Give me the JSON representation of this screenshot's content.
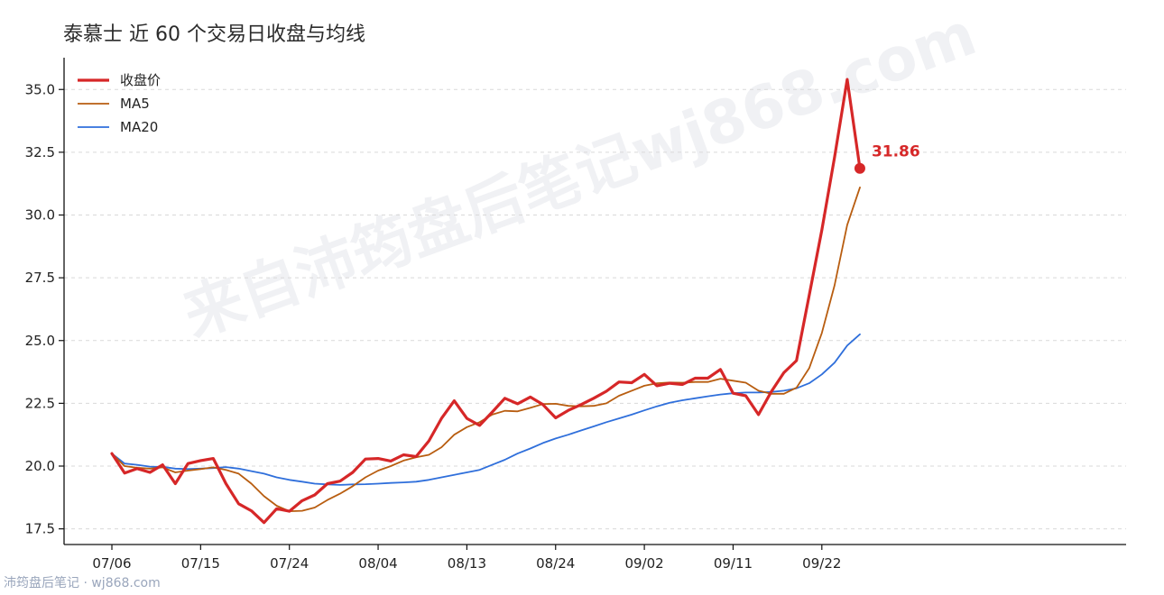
{
  "title": "泰慕士 近 60 个交易日收盘与均线",
  "watermark": "来自沛筠盘后笔记wj868.com",
  "footer": "沛筠盘后笔记 · wj868.com",
  "colors": {
    "close": "#d62728",
    "ma5": "#b85d10",
    "ma20": "#2f6fdb"
  },
  "chart_data": {
    "type": "line",
    "title": "泰慕士 近 60 个交易日收盘与均线",
    "xlabel": "",
    "ylabel": "",
    "ylim": [
      17.3,
      36.3
    ],
    "yticks": [
      17.5,
      20.0,
      22.5,
      25.0,
      27.5,
      30.0,
      32.5,
      35.0
    ],
    "ytick_labels": [
      "17.5",
      "20.0",
      "22.5",
      "25.0",
      "27.5",
      "30.0",
      "32.5",
      "35.0"
    ],
    "xtick_labels": [
      {
        "label": "07/06",
        "index": 0
      },
      {
        "label": "07/15",
        "index": 7
      },
      {
        "label": "07/24",
        "index": 14
      },
      {
        "label": "08/04",
        "index": 21
      },
      {
        "label": "08/13",
        "index": 28
      },
      {
        "label": "08/24",
        "index": 35
      },
      {
        "label": "09/02",
        "index": 42
      },
      {
        "label": "09/11",
        "index": 49
      },
      {
        "label": "09/22",
        "index": 56
      }
    ],
    "grid": "y-dashed",
    "legend_position": "top-left",
    "series": [
      {
        "name": "收盘价",
        "key": "close",
        "values": [
          20.5,
          19.72,
          19.9,
          19.75,
          20.05,
          19.3,
          20.1,
          20.22,
          20.3,
          19.3,
          18.5,
          18.22,
          17.75,
          18.3,
          18.2,
          18.62,
          18.85,
          19.3,
          19.4,
          19.75,
          20.28,
          20.3,
          20.2,
          20.45,
          20.38,
          21.0,
          21.9,
          22.6,
          21.9,
          21.62,
          22.15,
          22.7,
          22.48,
          22.75,
          22.45,
          21.92,
          22.22,
          22.45,
          22.7,
          22.98,
          23.35,
          23.32,
          23.65,
          23.2,
          23.3,
          23.25,
          23.5,
          23.5,
          23.85,
          22.9,
          22.8,
          22.05,
          22.95,
          23.72,
          24.2,
          26.8,
          29.4,
          32.3,
          35.4,
          31.86
        ]
      },
      {
        "name": "MA5",
        "key": "ma5",
        "values": [
          20.5,
          20.0,
          19.93,
          19.9,
          19.95,
          19.75,
          19.82,
          19.88,
          19.95,
          19.85,
          19.7,
          19.3,
          18.8,
          18.42,
          18.2,
          18.22,
          18.35,
          18.65,
          18.9,
          19.2,
          19.55,
          19.82,
          20.0,
          20.22,
          20.35,
          20.45,
          20.75,
          21.25,
          21.55,
          21.75,
          22.05,
          22.2,
          22.18,
          22.32,
          22.47,
          22.48,
          22.4,
          22.38,
          22.4,
          22.5,
          22.8,
          23.0,
          23.2,
          23.3,
          23.33,
          23.32,
          23.35,
          23.35,
          23.48,
          23.4,
          23.32,
          23.0,
          22.88,
          22.88,
          23.12,
          23.9,
          25.3,
          27.2,
          29.6,
          31.1
        ]
      },
      {
        "name": "MA20",
        "key": "ma20",
        "values": [
          20.5,
          20.1,
          20.05,
          19.98,
          19.97,
          19.9,
          19.88,
          19.9,
          19.92,
          19.96,
          19.9,
          19.8,
          19.7,
          19.55,
          19.45,
          19.38,
          19.3,
          19.27,
          19.25,
          19.27,
          19.28,
          19.3,
          19.33,
          19.35,
          19.38,
          19.45,
          19.55,
          19.65,
          19.75,
          19.85,
          20.05,
          20.25,
          20.5,
          20.7,
          20.92,
          21.1,
          21.25,
          21.42,
          21.58,
          21.75,
          21.9,
          22.05,
          22.22,
          22.38,
          22.52,
          22.62,
          22.7,
          22.78,
          22.85,
          22.9,
          22.93,
          22.93,
          22.95,
          23.0,
          23.1,
          23.3,
          23.65,
          24.12,
          24.8,
          25.25
        ]
      }
    ],
    "end_label": "31.86"
  },
  "legend": [
    {
      "label": "收盘价",
      "key": "close"
    },
    {
      "label": "MA5",
      "key": "ma5"
    },
    {
      "label": "MA20",
      "key": "ma20"
    }
  ]
}
